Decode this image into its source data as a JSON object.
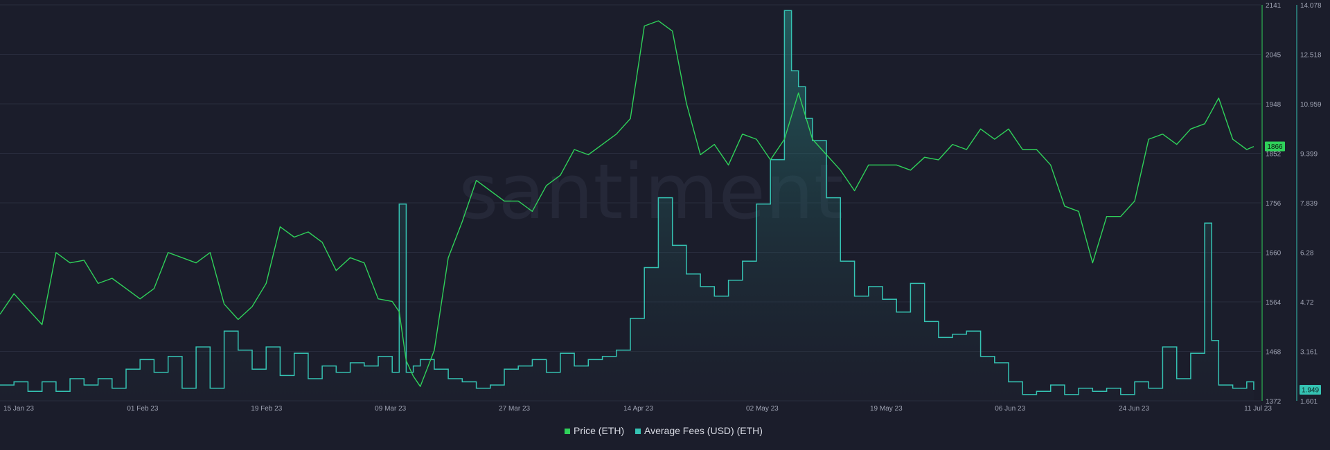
{
  "watermark": "santiment",
  "chart_data": {
    "type": "line",
    "title": "",
    "x_start": "2023-01-12",
    "x_end": "2023-07-11",
    "x_ticks": [
      "15 Jan 23",
      "01 Feb 23",
      "19 Feb 23",
      "09 Mar 23",
      "27 Mar 23",
      "14 Apr 23",
      "02 May 23",
      "19 May 23",
      "06 Jun 23",
      "24 Jun 23",
      "11 Jul 23"
    ],
    "grid": true,
    "legend_position": "bottom-center",
    "series": [
      {
        "name": "Price (ETH)",
        "type": "line",
        "color": "#2fd15a",
        "axis": "left",
        "ylim": [
          1372,
          2141
        ],
        "ticks": [
          "2141",
          "2045",
          "1948",
          "1852",
          "1756",
          "1660",
          "1564",
          "1468",
          "1372"
        ],
        "last_value_label": "1866",
        "x": [
          "2023-01-12",
          "2023-01-14",
          "2023-01-16",
          "2023-01-18",
          "2023-01-20",
          "2023-01-22",
          "2023-01-24",
          "2023-01-26",
          "2023-01-28",
          "2023-01-30",
          "2023-02-01",
          "2023-02-03",
          "2023-02-05",
          "2023-02-07",
          "2023-02-09",
          "2023-02-11",
          "2023-02-13",
          "2023-02-15",
          "2023-02-17",
          "2023-02-19",
          "2023-02-21",
          "2023-02-23",
          "2023-02-25",
          "2023-02-27",
          "2023-03-01",
          "2023-03-03",
          "2023-03-05",
          "2023-03-07",
          "2023-03-09",
          "2023-03-10",
          "2023-03-11",
          "2023-03-12",
          "2023-03-13",
          "2023-03-15",
          "2023-03-17",
          "2023-03-19",
          "2023-03-21",
          "2023-03-23",
          "2023-03-25",
          "2023-03-27",
          "2023-03-29",
          "2023-03-31",
          "2023-04-02",
          "2023-04-04",
          "2023-04-06",
          "2023-04-08",
          "2023-04-10",
          "2023-04-12",
          "2023-04-14",
          "2023-04-16",
          "2023-04-18",
          "2023-04-20",
          "2023-04-22",
          "2023-04-24",
          "2023-04-26",
          "2023-04-28",
          "2023-04-30",
          "2023-05-02",
          "2023-05-04",
          "2023-05-06",
          "2023-05-08",
          "2023-05-10",
          "2023-05-12",
          "2023-05-14",
          "2023-05-16",
          "2023-05-18",
          "2023-05-20",
          "2023-05-22",
          "2023-05-24",
          "2023-05-26",
          "2023-05-28",
          "2023-05-30",
          "2023-06-01",
          "2023-06-03",
          "2023-06-05",
          "2023-06-07",
          "2023-06-09",
          "2023-06-11",
          "2023-06-13",
          "2023-06-15",
          "2023-06-17",
          "2023-06-19",
          "2023-06-21",
          "2023-06-23",
          "2023-06-25",
          "2023-06-27",
          "2023-06-29",
          "2023-07-01",
          "2023-07-03",
          "2023-07-05",
          "2023-07-07",
          "2023-07-09",
          "2023-07-10"
        ],
        "values": [
          1540,
          1580,
          1550,
          1520,
          1660,
          1640,
          1645,
          1600,
          1610,
          1590,
          1570,
          1590,
          1660,
          1650,
          1640,
          1660,
          1560,
          1530,
          1555,
          1600,
          1710,
          1690,
          1700,
          1680,
          1625,
          1650,
          1640,
          1570,
          1565,
          1545,
          1450,
          1420,
          1400,
          1470,
          1650,
          1720,
          1800,
          1780,
          1760,
          1760,
          1740,
          1790,
          1810,
          1860,
          1850,
          1870,
          1890,
          1920,
          2100,
          2110,
          2090,
          1950,
          1850,
          1870,
          1830,
          1890,
          1880,
          1840,
          1880,
          1970,
          1880,
          1850,
          1820,
          1780,
          1830,
          1830,
          1830,
          1820,
          1845,
          1840,
          1870,
          1860,
          1900,
          1880,
          1900,
          1860,
          1860,
          1830,
          1750,
          1740,
          1640,
          1730,
          1730,
          1760,
          1880,
          1890,
          1870,
          1900,
          1910,
          1960,
          1880,
          1860,
          1866
        ]
      },
      {
        "name": "Average Fees (USD) (ETH)",
        "type": "area",
        "color": "#35c3b3",
        "axis": "right",
        "ylim": [
          1.601,
          14.078
        ],
        "ticks": [
          "14.078",
          "12.518",
          "10.959",
          "9.399",
          "7.839",
          "6.28",
          "4.72",
          "3.161",
          "1.601"
        ],
        "last_value_label": "1.949",
        "x": [
          "2023-01-12",
          "2023-01-14",
          "2023-01-16",
          "2023-01-18",
          "2023-01-20",
          "2023-01-22",
          "2023-01-24",
          "2023-01-26",
          "2023-01-28",
          "2023-01-30",
          "2023-02-01",
          "2023-02-03",
          "2023-02-05",
          "2023-02-07",
          "2023-02-09",
          "2023-02-11",
          "2023-02-13",
          "2023-02-15",
          "2023-02-17",
          "2023-02-19",
          "2023-02-21",
          "2023-02-23",
          "2023-02-25",
          "2023-02-27",
          "2023-03-01",
          "2023-03-03",
          "2023-03-05",
          "2023-03-07",
          "2023-03-08",
          "2023-03-09",
          "2023-03-10",
          "2023-03-11",
          "2023-03-12",
          "2023-03-13",
          "2023-03-15",
          "2023-03-17",
          "2023-03-19",
          "2023-03-21",
          "2023-03-23",
          "2023-03-25",
          "2023-03-27",
          "2023-03-29",
          "2023-03-31",
          "2023-04-02",
          "2023-04-04",
          "2023-04-06",
          "2023-04-08",
          "2023-04-10",
          "2023-04-12",
          "2023-04-14",
          "2023-04-16",
          "2023-04-18",
          "2023-04-20",
          "2023-04-22",
          "2023-04-24",
          "2023-04-26",
          "2023-04-28",
          "2023-04-30",
          "2023-05-02",
          "2023-05-04",
          "2023-05-05",
          "2023-05-06",
          "2023-05-07",
          "2023-05-08",
          "2023-05-10",
          "2023-05-12",
          "2023-05-14",
          "2023-05-16",
          "2023-05-18",
          "2023-05-20",
          "2023-05-22",
          "2023-05-24",
          "2023-05-26",
          "2023-05-28",
          "2023-05-30",
          "2023-06-01",
          "2023-06-03",
          "2023-06-05",
          "2023-06-07",
          "2023-06-09",
          "2023-06-11",
          "2023-06-13",
          "2023-06-15",
          "2023-06-17",
          "2023-06-19",
          "2023-06-21",
          "2023-06-23",
          "2023-06-25",
          "2023-06-27",
          "2023-06-29",
          "2023-07-01",
          "2023-07-03",
          "2023-07-04",
          "2023-07-05",
          "2023-07-07",
          "2023-07-09",
          "2023-07-10"
        ],
        "values": [
          2.1,
          2.2,
          1.9,
          2.2,
          1.9,
          2.3,
          2.1,
          2.3,
          2.0,
          2.6,
          2.9,
          2.5,
          3.0,
          2.0,
          3.3,
          2.0,
          3.8,
          3.2,
          2.6,
          3.3,
          2.4,
          3.1,
          2.3,
          2.7,
          2.5,
          2.8,
          2.7,
          3.0,
          3.0,
          2.5,
          7.8,
          2.5,
          2.7,
          2.9,
          2.6,
          2.3,
          2.2,
          2.0,
          2.1,
          2.6,
          2.7,
          2.9,
          2.5,
          3.1,
          2.7,
          2.9,
          3.0,
          3.2,
          4.2,
          5.8,
          8.0,
          6.5,
          5.6,
          5.2,
          4.9,
          5.4,
          6.0,
          7.8,
          9.2,
          13.9,
          12.0,
          11.5,
          10.5,
          9.8,
          8.0,
          6.0,
          4.9,
          5.2,
          4.8,
          4.4,
          5.3,
          4.1,
          3.6,
          3.7,
          3.8,
          3.0,
          2.8,
          2.2,
          1.8,
          1.9,
          2.1,
          1.8,
          2.0,
          1.9,
          2.0,
          1.8,
          2.2,
          2.0,
          3.3,
          2.3,
          3.1,
          7.2,
          3.5,
          2.1,
          2.0,
          2.2,
          1.949
        ]
      }
    ]
  }
}
